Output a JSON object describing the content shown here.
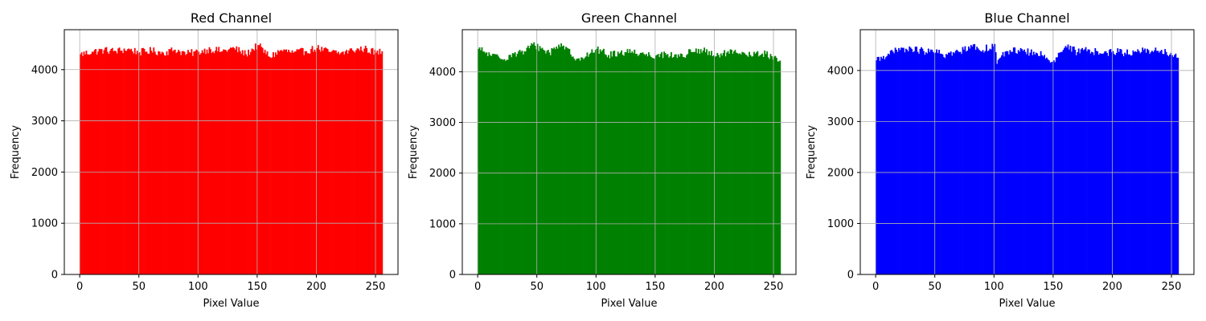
{
  "chart_data": [
    {
      "type": "bar",
      "title": "Red Channel",
      "xlabel": "Pixel Value",
      "ylabel": "Frequency",
      "color": "#ff0000",
      "xlim": [
        -13,
        269
      ],
      "ylim": [
        0,
        4780
      ],
      "xticks": [
        0,
        50,
        100,
        150,
        200,
        250
      ],
      "yticks": [
        0,
        1000,
        2000,
        3000,
        4000
      ],
      "grid": true,
      "bins": 256,
      "bin_range": [
        0,
        256
      ],
      "mean_frequency": 4340,
      "values_sampled": [
        {
          "x": 0,
          "y": 4300
        },
        {
          "x": 10,
          "y": 4350
        },
        {
          "x": 20,
          "y": 4380
        },
        {
          "x": 30,
          "y": 4360
        },
        {
          "x": 40,
          "y": 4400
        },
        {
          "x": 50,
          "y": 4340
        },
        {
          "x": 60,
          "y": 4370
        },
        {
          "x": 70,
          "y": 4330
        },
        {
          "x": 80,
          "y": 4390
        },
        {
          "x": 90,
          "y": 4310
        },
        {
          "x": 100,
          "y": 4350
        },
        {
          "x": 110,
          "y": 4400
        },
        {
          "x": 120,
          "y": 4360
        },
        {
          "x": 130,
          "y": 4420
        },
        {
          "x": 140,
          "y": 4300
        },
        {
          "x": 150,
          "y": 4480
        },
        {
          "x": 160,
          "y": 4250
        },
        {
          "x": 170,
          "y": 4380
        },
        {
          "x": 180,
          "y": 4330
        },
        {
          "x": 190,
          "y": 4360
        },
        {
          "x": 200,
          "y": 4420
        },
        {
          "x": 210,
          "y": 4350
        },
        {
          "x": 220,
          "y": 4320
        },
        {
          "x": 230,
          "y": 4380
        },
        {
          "x": 240,
          "y": 4410
        },
        {
          "x": 250,
          "y": 4330
        },
        {
          "x": 255,
          "y": 4360
        }
      ]
    },
    {
      "type": "bar",
      "title": "Green Channel",
      "xlabel": "Pixel Value",
      "ylabel": "Frequency",
      "color": "#008000",
      "xlim": [
        -13,
        269
      ],
      "ylim": [
        0,
        4830
      ],
      "xticks": [
        0,
        50,
        100,
        150,
        200,
        250
      ],
      "yticks": [
        0,
        1000,
        2000,
        3000,
        4000
      ],
      "grid": true,
      "bins": 256,
      "bin_range": [
        0,
        256
      ],
      "mean_frequency": 4340,
      "values_sampled": [
        {
          "x": 0,
          "y": 4450
        },
        {
          "x": 10,
          "y": 4330
        },
        {
          "x": 20,
          "y": 4250
        },
        {
          "x": 30,
          "y": 4360
        },
        {
          "x": 40,
          "y": 4400
        },
        {
          "x": 46,
          "y": 4540
        },
        {
          "x": 60,
          "y": 4380
        },
        {
          "x": 70,
          "y": 4560
        },
        {
          "x": 80,
          "y": 4300
        },
        {
          "x": 90,
          "y": 4280
        },
        {
          "x": 100,
          "y": 4450
        },
        {
          "x": 110,
          "y": 4330
        },
        {
          "x": 120,
          "y": 4380
        },
        {
          "x": 130,
          "y": 4400
        },
        {
          "x": 140,
          "y": 4350
        },
        {
          "x": 150,
          "y": 4320
        },
        {
          "x": 160,
          "y": 4350
        },
        {
          "x": 170,
          "y": 4300
        },
        {
          "x": 180,
          "y": 4390
        },
        {
          "x": 190,
          "y": 4420
        },
        {
          "x": 200,
          "y": 4300
        },
        {
          "x": 210,
          "y": 4380
        },
        {
          "x": 220,
          "y": 4350
        },
        {
          "x": 230,
          "y": 4330
        },
        {
          "x": 240,
          "y": 4360
        },
        {
          "x": 250,
          "y": 4300
        },
        {
          "x": 255,
          "y": 4220
        }
      ]
    },
    {
      "type": "bar",
      "title": "Blue Channel",
      "xlabel": "Pixel Value",
      "ylabel": "Frequency",
      "color": "#0000ff",
      "xlim": [
        -13,
        269
      ],
      "ylim": [
        0,
        4800
      ],
      "xticks": [
        0,
        50,
        100,
        150,
        200,
        250
      ],
      "yticks": [
        0,
        1000,
        2000,
        3000,
        4000
      ],
      "grid": true,
      "bins": 256,
      "bin_range": [
        0,
        256
      ],
      "mean_frequency": 4340,
      "values_sampled": [
        {
          "x": 0,
          "y": 4200
        },
        {
          "x": 10,
          "y": 4330
        },
        {
          "x": 20,
          "y": 4400
        },
        {
          "x": 30,
          "y": 4420
        },
        {
          "x": 40,
          "y": 4380
        },
        {
          "x": 50,
          "y": 4350
        },
        {
          "x": 60,
          "y": 4310
        },
        {
          "x": 70,
          "y": 4360
        },
        {
          "x": 80,
          "y": 4500
        },
        {
          "x": 90,
          "y": 4400
        },
        {
          "x": 100,
          "y": 4520
        },
        {
          "x": 102,
          "y": 4130
        },
        {
          "x": 110,
          "y": 4380
        },
        {
          "x": 120,
          "y": 4400
        },
        {
          "x": 130,
          "y": 4350
        },
        {
          "x": 140,
          "y": 4300
        },
        {
          "x": 150,
          "y": 4200
        },
        {
          "x": 160,
          "y": 4480
        },
        {
          "x": 170,
          "y": 4360
        },
        {
          "x": 180,
          "y": 4410
        },
        {
          "x": 190,
          "y": 4330
        },
        {
          "x": 200,
          "y": 4380
        },
        {
          "x": 210,
          "y": 4350
        },
        {
          "x": 220,
          "y": 4360
        },
        {
          "x": 230,
          "y": 4400
        },
        {
          "x": 240,
          "y": 4380
        },
        {
          "x": 250,
          "y": 4300
        },
        {
          "x": 255,
          "y": 4250
        }
      ]
    }
  ]
}
